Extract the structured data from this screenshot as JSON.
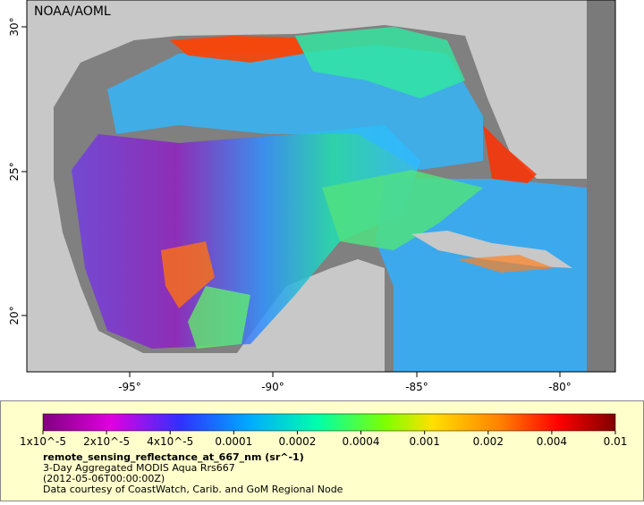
{
  "map": {
    "credit": "NOAA/AOML",
    "lat_labels": [
      "30°",
      "25°",
      "20°"
    ],
    "lon_labels": [
      "-95°",
      "-90°",
      "-85°",
      "-80°"
    ]
  },
  "legend": {
    "tick_labels": [
      "1x10^-5",
      "2x10^-5",
      "4x10^-5",
      "0.0001",
      "0.0002",
      "0.0004",
      "0.001",
      "0.002",
      "0.004",
      "0.01"
    ],
    "title": "remote_sensing_reflectance_at_667_nm (sr^-1)",
    "lines": [
      "3-Day Aggregated MODIS Aqua Rrs667",
      "(2012-05-06T00:00:00Z)",
      "Data courtesy of CoastWatch, Carib. and GoM Regional Node"
    ]
  }
}
